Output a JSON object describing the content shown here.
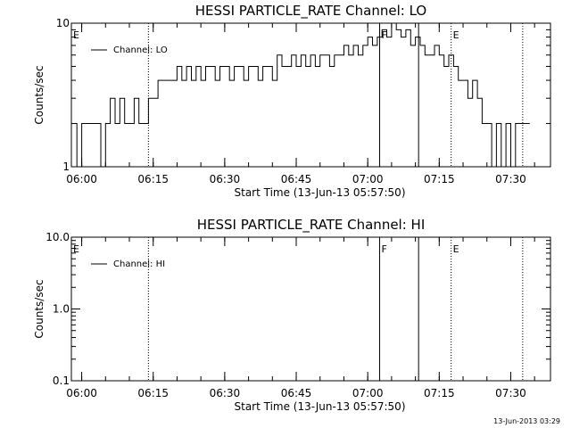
{
  "footer": {
    "timestamp": "13-Jun-2013 03:29"
  },
  "chart_data": [
    {
      "type": "line",
      "title": "HESSI PARTICLE_RATE Channel: LO",
      "xlabel": "Start Time (13-Jun-13 05:57:50)",
      "ylabel": "Counts/sec",
      "yscale": "log",
      "xlim": [
        "05:57:50",
        "07:38:20"
      ],
      "ylim": [
        1,
        10
      ],
      "x_ticks": [
        "06:00",
        "06:15",
        "06:30",
        "06:45",
        "07:00",
        "07:15",
        "07:30"
      ],
      "y_ticks": [
        "1",
        "10"
      ],
      "grid": false,
      "legend": {
        "position": "top-left",
        "entries": [
          "Channel: LO"
        ]
      },
      "series": [
        {
          "name": "Channel: LO",
          "color": "#000000",
          "x": [
            "05:58",
            "05:59",
            "06:00",
            "06:01",
            "06:02",
            "06:03",
            "06:04",
            "06:05",
            "06:06",
            "06:07",
            "06:08",
            "06:09",
            "06:10",
            "06:11",
            "06:12",
            "06:13",
            "06:14",
            "06:15",
            "06:16",
            "06:17",
            "06:18",
            "06:19",
            "06:20",
            "06:21",
            "06:22",
            "06:23",
            "06:24",
            "06:25",
            "06:26",
            "06:27",
            "06:28",
            "06:29",
            "06:30",
            "06:31",
            "06:32",
            "06:33",
            "06:34",
            "06:35",
            "06:36",
            "06:37",
            "06:38",
            "06:39",
            "06:40",
            "06:41",
            "06:42",
            "06:43",
            "06:44",
            "06:45",
            "06:46",
            "06:47",
            "06:48",
            "06:49",
            "06:50",
            "06:51",
            "06:52",
            "06:53",
            "06:54",
            "06:55",
            "06:56",
            "06:57",
            "06:58",
            "06:59",
            "07:00",
            "07:01",
            "07:02",
            "07:03",
            "07:04",
            "07:05",
            "07:06",
            "07:07",
            "07:08",
            "07:09",
            "07:10",
            "07:11",
            "07:12",
            "07:13",
            "07:14",
            "07:15",
            "07:16",
            "07:17",
            "07:18",
            "07:19",
            "07:20",
            "07:21",
            "07:22",
            "07:23",
            "07:24",
            "07:25",
            "07:26",
            "07:27",
            "07:28",
            "07:29",
            "07:30",
            "07:31",
            "07:32",
            "07:33"
          ],
          "y": [
            2,
            1,
            2,
            2,
            2,
            2,
            1,
            2,
            3,
            2,
            3,
            2,
            2,
            3,
            2,
            2,
            3,
            3,
            4,
            4,
            4,
            4,
            5,
            4,
            5,
            4,
            5,
            4,
            5,
            5,
            4,
            5,
            5,
            4,
            5,
            5,
            4,
            5,
            5,
            4,
            5,
            5,
            4,
            6,
            5,
            5,
            6,
            5,
            6,
            5,
            6,
            5,
            6,
            6,
            5,
            6,
            6,
            7,
            6,
            7,
            6,
            7,
            8,
            7,
            8,
            9,
            8,
            10,
            9,
            8,
            9,
            7,
            8,
            7,
            6,
            6,
            7,
            6,
            5,
            6,
            5,
            4,
            4,
            3,
            4,
            3,
            2,
            2,
            1,
            2,
            1,
            2,
            1,
            2,
            2,
            2
          ]
        }
      ],
      "event_markers": [
        {
          "time": "06:14:00",
          "style": "dotted",
          "label": ""
        },
        {
          "time": "07:02:30",
          "style": "solid",
          "label": "F"
        },
        {
          "time": "07:10:40",
          "style": "solid",
          "label": ""
        },
        {
          "time": "07:17:30",
          "style": "dotted",
          "label": "E"
        },
        {
          "time": "07:32:30",
          "style": "dotted",
          "label": ""
        }
      ],
      "corner_label": "E"
    },
    {
      "type": "line",
      "title": "HESSI PARTICLE_RATE Channel: HI",
      "xlabel": "Start Time (13-Jun-13 05:57:50)",
      "ylabel": "Counts/sec",
      "yscale": "log",
      "xlim": [
        "05:57:50",
        "07:38:20"
      ],
      "ylim": [
        0.1,
        10
      ],
      "x_ticks": [
        "06:00",
        "06:15",
        "06:30",
        "06:45",
        "07:00",
        "07:15",
        "07:30"
      ],
      "y_ticks": [
        "0.1",
        "1.0",
        "10.0"
      ],
      "grid": false,
      "legend": {
        "position": "top-left",
        "entries": [
          "Channel: HI"
        ]
      },
      "series": [
        {
          "name": "Channel: HI",
          "color": "#000000",
          "x": [],
          "y": []
        }
      ],
      "event_markers": [
        {
          "time": "06:14:00",
          "style": "dotted",
          "label": ""
        },
        {
          "time": "07:02:30",
          "style": "solid",
          "label": "F"
        },
        {
          "time": "07:10:40",
          "style": "solid",
          "label": ""
        },
        {
          "time": "07:17:30",
          "style": "dotted",
          "label": "E"
        },
        {
          "time": "07:32:30",
          "style": "dotted",
          "label": ""
        }
      ],
      "corner_label": "E"
    }
  ]
}
